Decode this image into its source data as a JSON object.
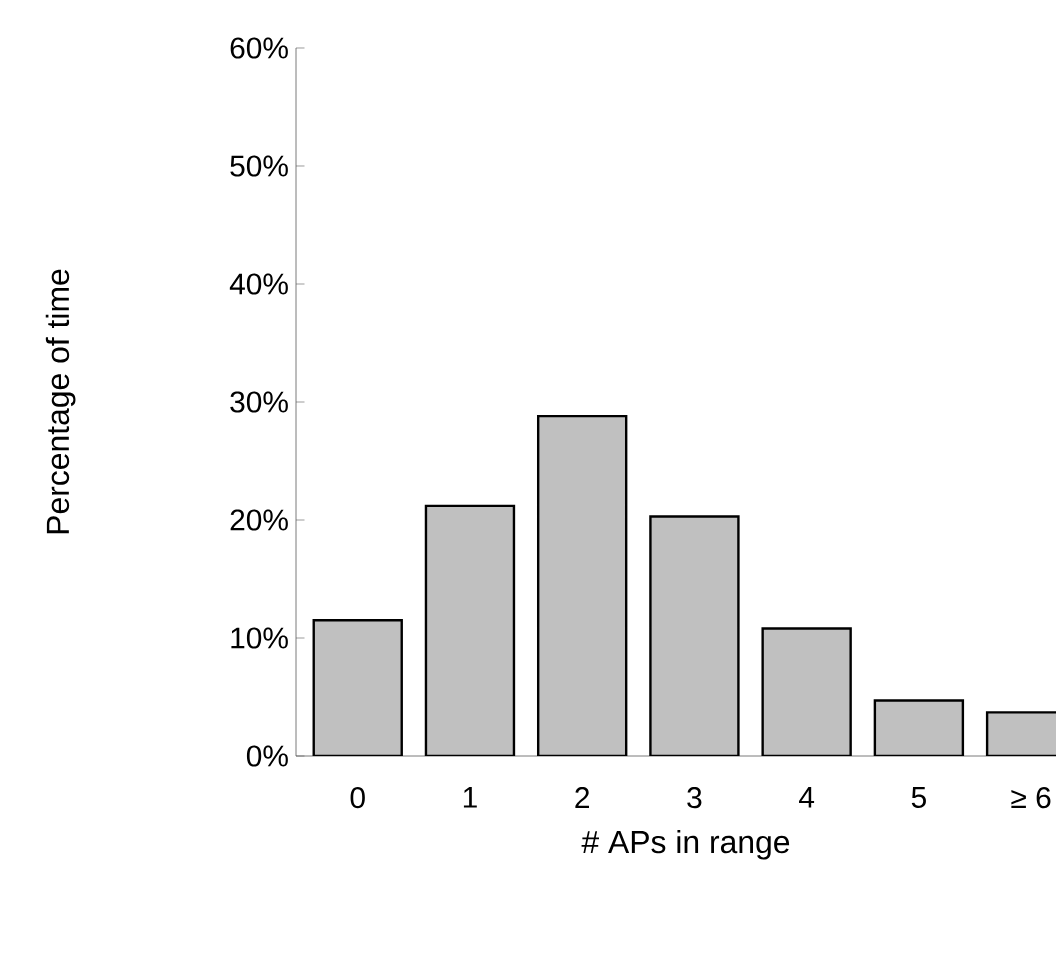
{
  "chart_data": {
    "type": "bar",
    "xlabel": "# APs in range",
    "ylabel": "Percentage of time",
    "categories": [
      "0",
      "1",
      "2",
      "3",
      "4",
      "5",
      "≥ 6"
    ],
    "values": [
      11.5,
      21.2,
      28.8,
      20.3,
      10.8,
      4.7,
      3.7
    ],
    "color": "#c0c0c0",
    "ylim": [
      0,
      60
    ],
    "yticks": [
      {
        "value": 0,
        "label": "0%"
      },
      {
        "value": 10,
        "label": "10%"
      },
      {
        "value": 20,
        "label": "20%"
      },
      {
        "value": 30,
        "label": "30%"
      },
      {
        "value": 40,
        "label": "40%"
      },
      {
        "value": 50,
        "label": "50%"
      },
      {
        "value": 60,
        "label": "60%"
      }
    ],
    "grid": false
  }
}
